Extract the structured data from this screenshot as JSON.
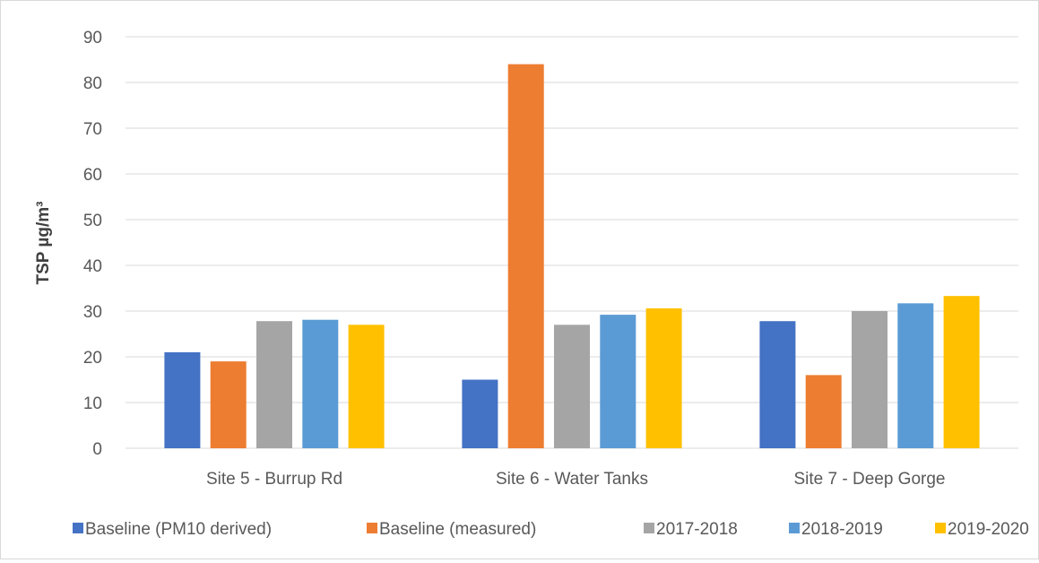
{
  "chart_data": {
    "type": "bar",
    "title": "",
    "xlabel": "",
    "ylabel": "TSP µg/m³",
    "ylim": [
      0,
      90
    ],
    "yticks": [
      "0",
      "10",
      "20",
      "30",
      "40",
      "50",
      "60",
      "70",
      "80",
      "90"
    ],
    "grid": true,
    "legend_position": "bottom",
    "categories": [
      "Site 5 - Burrup Rd",
      "Site 6 - Water Tanks",
      "Site 7 - Deep Gorge"
    ],
    "series": [
      {
        "name": "Baseline (PM10 derived)",
        "color": "#4472C4",
        "values": [
          21,
          15,
          27.8
        ]
      },
      {
        "name": "Baseline (measured)",
        "color": "#ED7D31",
        "values": [
          19,
          84,
          16
        ]
      },
      {
        "name": "2017-2018",
        "color": "#A5A5A5",
        "values": [
          27.8,
          27,
          30
        ]
      },
      {
        "name": "2018-2019",
        "color": "#5B9BD5",
        "values": [
          28.1,
          29.2,
          31.7
        ]
      },
      {
        "name": "2019-2020",
        "color": "#FFC000",
        "values": [
          27,
          30.6,
          33.3
        ]
      }
    ]
  }
}
